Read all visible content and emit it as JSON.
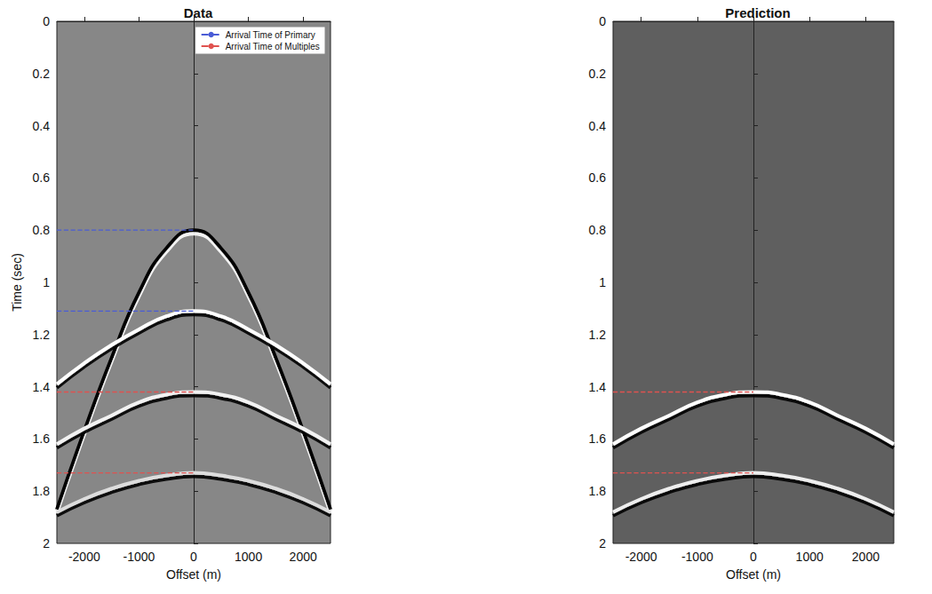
{
  "chart_data": [
    {
      "type": "line",
      "title": "Data",
      "x_label": "Offset (m)",
      "y_label": "Time (sec)",
      "xlim": [
        -2500,
        2500
      ],
      "xticks": [
        -2000,
        -1000,
        0,
        1000,
        2000
      ],
      "ylim": [
        0,
        2
      ],
      "yticks": [
        0,
        0.2,
        0.4,
        0.6,
        0.8,
        1,
        1.2,
        1.4,
        1.6,
        1.8,
        2
      ],
      "legend": "upper right",
      "grid": false,
      "series": [
        {
          "color": "#000000",
          "line_style": "solid",
          "x": [
            -2500,
            -2000,
            -1500,
            -1000,
            -500,
            0,
            500,
            1000,
            1500,
            2000,
            2500
          ],
          "values": [
            1.87,
            1.57,
            1.29,
            1.04,
            0.87,
            0.8,
            0.87,
            1.04,
            1.29,
            1.57,
            1.87
          ]
        },
        {
          "color": "#ffffff",
          "line_style": "solid",
          "x": [
            -2500,
            -2000,
            -1500,
            -1000,
            -500,
            0,
            500,
            1000,
            1500,
            2000,
            2500
          ],
          "values": [
            1.39,
            1.31,
            1.24,
            1.18,
            1.13,
            1.11,
            1.13,
            1.18,
            1.24,
            1.31,
            1.39
          ]
        },
        {
          "color": "#f2f2f2",
          "line_style": "solid",
          "x": [
            -2500,
            -2000,
            -1500,
            -1000,
            -500,
            0,
            500,
            1000,
            1500,
            2000,
            2500
          ],
          "values": [
            1.62,
            1.56,
            1.51,
            1.46,
            1.43,
            1.42,
            1.43,
            1.46,
            1.51,
            1.56,
            1.62
          ]
        },
        {
          "color": "#dddddd",
          "line_style": "solid",
          "x": [
            -2500,
            -2000,
            -1500,
            -1000,
            -500,
            0,
            500,
            1000,
            1500,
            2000,
            2500
          ],
          "values": [
            1.88,
            1.83,
            1.79,
            1.76,
            1.74,
            1.73,
            1.74,
            1.76,
            1.79,
            1.83,
            1.88
          ]
        },
        {
          "name": "Arrival Time of Primary",
          "color": "#4a5cd6",
          "line_style": "dashed",
          "x": [
            -2500,
            0
          ],
          "values": [
            0.8,
            0.8
          ]
        },
        {
          "name": "Arrival Time of Primary",
          "color": "#4a5cd6",
          "line_style": "dashed",
          "x": [
            -2500,
            0
          ],
          "values": [
            1.11,
            1.11
          ]
        },
        {
          "name": "Arrival Time of Multiples",
          "color": "#e0524f",
          "line_style": "dashed",
          "x": [
            -2500,
            0
          ],
          "values": [
            1.42,
            1.42
          ]
        },
        {
          "name": "Arrival Time of Multiples",
          "color": "#e0524f",
          "line_style": "dashed",
          "x": [
            -2500,
            0
          ],
          "values": [
            1.73,
            1.73
          ]
        }
      ]
    },
    {
      "type": "line",
      "title": "Prediction",
      "x_label": "Offset (m)",
      "xlim": [
        -2500,
        2500
      ],
      "xticks": [
        -2000,
        -1000,
        0,
        1000,
        2000
      ],
      "ylim": [
        0,
        2
      ],
      "yticks": [
        0,
        0.2,
        0.4,
        0.6,
        0.8,
        1,
        1.2,
        1.4,
        1.6,
        1.8,
        2
      ],
      "grid": false,
      "series": [
        {
          "color": "#ffffff",
          "line_style": "solid",
          "x": [
            -2500,
            -2000,
            -1500,
            -1000,
            -500,
            0,
            500,
            1000,
            1500,
            2000,
            2500
          ],
          "values": [
            1.62,
            1.56,
            1.51,
            1.46,
            1.43,
            1.42,
            1.43,
            1.46,
            1.51,
            1.56,
            1.62
          ]
        },
        {
          "color": "#eeeeee",
          "line_style": "solid",
          "x": [
            -2500,
            -2000,
            -1500,
            -1000,
            -500,
            0,
            500,
            1000,
            1500,
            2000,
            2500
          ],
          "values": [
            1.88,
            1.83,
            1.79,
            1.76,
            1.74,
            1.73,
            1.74,
            1.76,
            1.79,
            1.83,
            1.88
          ]
        },
        {
          "color": "#e0524f",
          "line_style": "dashed",
          "x": [
            -2500,
            0
          ],
          "values": [
            1.42,
            1.42
          ]
        },
        {
          "color": "#e0524f",
          "line_style": "dashed",
          "x": [
            -2500,
            0
          ],
          "values": [
            1.73,
            1.73
          ]
        }
      ]
    }
  ]
}
